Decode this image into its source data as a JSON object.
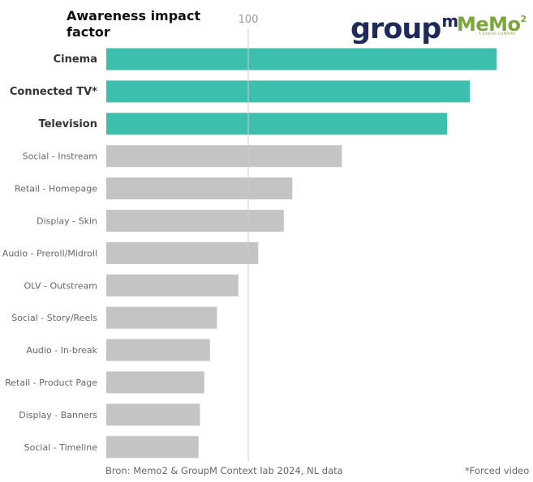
{
  "title": "Awareness impact factor",
  "logos": {
    "groupm": "group",
    "groupm_m": "m",
    "memo": "MeMo",
    "memo_sup": "2",
    "memo_sub": "A KANTAR COMPANY"
  },
  "footer": {
    "source": "Bron: Memo2 & GroupM Context lab 2024, NL data",
    "note": "*Forced video"
  },
  "chart_data": {
    "type": "bar",
    "orientation": "horizontal",
    "title": "Awareness impact factor",
    "xlabel": "",
    "ylabel": "",
    "reference_line": 100,
    "xlim": [
      0,
      275
    ],
    "grid": false,
    "categories": [
      "Cinema",
      "Connected TV*",
      "Television",
      "Social - Instream",
      "Retail - Homepage",
      "Display - Skin",
      "Audio - Preroll/Midroll",
      "OLV - Outstream",
      "Social - Story/Reels",
      "Audio - In-break",
      "Retail - Product Page",
      "Display - Banners",
      "Social - Timeline"
    ],
    "values": [
      275,
      256,
      240,
      166,
      131,
      125,
      107,
      93,
      78,
      73,
      69,
      66,
      65
    ],
    "highlighted": [
      "Cinema",
      "Connected TV*",
      "Television"
    ],
    "colors": {
      "highlight": "#3dbfad",
      "other": "#c4c4c4",
      "refline": "#cccccc"
    }
  }
}
